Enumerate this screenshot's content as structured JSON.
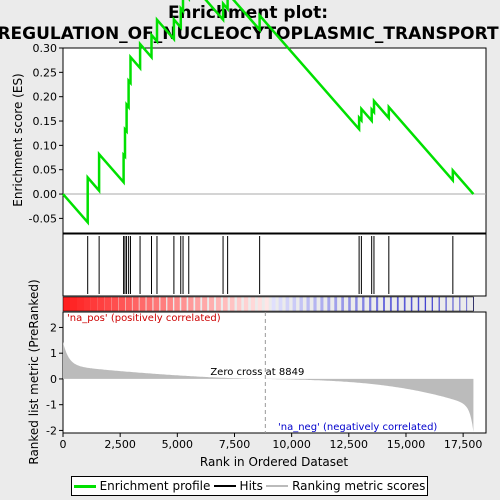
{
  "chart_data": {
    "type": "line",
    "title_line1": "Enrichment plot:",
    "title_line2": "REGULATION_OF_NUCLEOCYTOPLASMIC_TRANSPORT",
    "xlabel": "Rank in Ordered Dataset",
    "ylabel_top": "Enrichment score (ES)",
    "ylabel_bottom": "Ranked list metric (PreRanked)",
    "xlim": [
      0,
      18500
    ],
    "es_ylim": [
      -0.08,
      0.3
    ],
    "metric_ylim": [
      -2.1,
      2.6
    ],
    "x_ticks": [
      0,
      2500,
      5000,
      7500,
      10000,
      12500,
      15000,
      17500
    ],
    "x_tick_labels": [
      "0",
      "2,500",
      "5,000",
      "7,500",
      "10,000",
      "12,500",
      "15,000",
      "17,500"
    ],
    "es_ticks": [
      -0.05,
      0.0,
      0.05,
      0.1,
      0.15,
      0.2,
      0.25,
      0.3
    ],
    "es_tick_labels": [
      "-0.05",
      "0.00",
      "0.05",
      "0.10",
      "0.15",
      "0.20",
      "0.25",
      "0.30"
    ],
    "metric_ticks": [
      -2,
      -1,
      0,
      1,
      2
    ],
    "metric_tick_labels": [
      "-2",
      "-1",
      "0",
      "1",
      "2"
    ],
    "total_genes": 17950,
    "zero_cross": 8849,
    "zero_cross_label": "Zero cross at 8849",
    "pos_label": "'na_pos' (positively correlated)",
    "neg_label": "'na_neg' (negatively correlated)",
    "hits": [
      1080,
      1580,
      2650,
      2710,
      2780,
      2870,
      2950,
      3370,
      3870,
      4110,
      4850,
      5150,
      5250,
      5500,
      7000,
      7200,
      8600,
      12950,
      13050,
      13500,
      13600,
      14250,
      17050
    ],
    "es_start_drop": -0.058,
    "es_end": 0.0,
    "colors": {
      "enrichment": "#00e000",
      "hits": "#000000",
      "metric_fill": "#bbbbbb",
      "pos_label": "#cc0000",
      "neg_label": "#0000cc",
      "title_bg": "#ebebeb"
    },
    "legend": [
      {
        "label": "Enrichment profile",
        "color": "#00e000",
        "width": 3
      },
      {
        "label": "Hits",
        "color": "#000000",
        "width": 2
      },
      {
        "label": "Ranking metric scores",
        "color": "#bbbbbb",
        "width": 2
      }
    ]
  }
}
